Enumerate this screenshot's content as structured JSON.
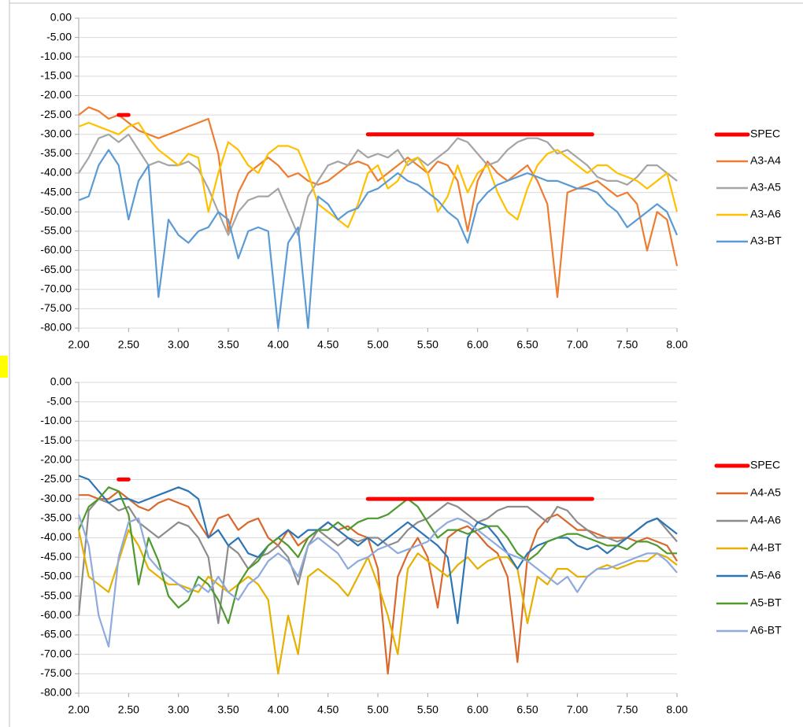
{
  "chart_data": [
    {
      "type": "line",
      "x": [
        2,
        2.1,
        2.2,
        2.3,
        2.4,
        2.5,
        2.6,
        2.7,
        2.8,
        2.9,
        3,
        3.1,
        3.2,
        3.3,
        3.4,
        3.5,
        3.6,
        3.7,
        3.8,
        3.9,
        4,
        4.1,
        4.2,
        4.3,
        4.4,
        4.5,
        4.6,
        4.7,
        4.8,
        4.9,
        5,
        5.1,
        5.2,
        5.3,
        5.4,
        5.5,
        5.6,
        5.7,
        5.8,
        5.9,
        6,
        6.1,
        6.2,
        6.3,
        6.4,
        6.5,
        6.6,
        6.7,
        6.8,
        6.9,
        7,
        7.1,
        7.2,
        7.3,
        7.4,
        7.5,
        7.6,
        7.7,
        7.8,
        7.9,
        8
      ],
      "xlim": [
        2,
        8
      ],
      "xticks": [
        {
          "value": 2,
          "label": "2.00"
        },
        {
          "value": 2.5,
          "label": "2.50"
        },
        {
          "value": 3,
          "label": "3.00"
        },
        {
          "value": 3.5,
          "label": "3.50"
        },
        {
          "value": 4,
          "label": "4.00"
        },
        {
          "value": 4.5,
          "label": "4.50"
        },
        {
          "value": 5,
          "label": "5.00"
        },
        {
          "value": 5.5,
          "label": "5.50"
        },
        {
          "value": 6,
          "label": "6.00"
        },
        {
          "value": 6.5,
          "label": "6.50"
        },
        {
          "value": 7,
          "label": "7.00"
        },
        {
          "value": 7.5,
          "label": "7.50"
        },
        {
          "value": 8,
          "label": "8.00"
        }
      ],
      "ylim": [
        -80,
        0
      ],
      "yticks": [
        {
          "value": 0,
          "label": "0.00"
        },
        {
          "value": -5,
          "label": "-5.00"
        },
        {
          "value": -10,
          "label": "-10.00"
        },
        {
          "value": -15,
          "label": "-15.00"
        },
        {
          "value": -20,
          "label": "-20.00"
        },
        {
          "value": -25,
          "label": "-25.00"
        },
        {
          "value": -30,
          "label": "-30.00"
        },
        {
          "value": -35,
          "label": "-35.00"
        },
        {
          "value": -40,
          "label": "-40.00"
        },
        {
          "value": -45,
          "label": "-45.00"
        },
        {
          "value": -50,
          "label": "-50.00"
        },
        {
          "value": -55,
          "label": "-55.00"
        },
        {
          "value": -60,
          "label": "-60.00"
        },
        {
          "value": -65,
          "label": "-65.00"
        },
        {
          "value": -70,
          "label": "-70.00"
        },
        {
          "value": -75,
          "label": "-75.00"
        },
        {
          "value": -80,
          "label": "-80.00"
        }
      ],
      "grid": true,
      "legend": "right",
      "series": [
        {
          "name": "SPEC",
          "color": "#ff0000",
          "x": [
            2.4,
            2.5,
            2.6,
            4.9,
            7.15
          ],
          "values": [
            -25,
            -25,
            null,
            -30,
            -30
          ]
        },
        {
          "name": "A3-A4",
          "color": "#ed7d31",
          "values": [
            -25,
            -23,
            -24,
            -26,
            -25,
            -27,
            -29,
            -30,
            -31,
            -30,
            -29,
            -28,
            -27,
            -26,
            -35,
            -55,
            -45,
            -40,
            -38,
            -36,
            -38,
            -41,
            -40,
            -42,
            -43,
            -42,
            -40,
            -38,
            -37,
            -38,
            -42,
            -40,
            -38,
            -36,
            -38,
            -40,
            -37,
            -38,
            -42,
            -55,
            -42,
            -37,
            -40,
            -42,
            -40,
            -38,
            -42,
            -48,
            -72,
            -45,
            -44,
            -43,
            -42,
            -44,
            -46,
            -45,
            -48,
            -60,
            -50,
            -52,
            -64
          ]
        },
        {
          "name": "A3-A5",
          "color": "#a5a5a5",
          "values": [
            -40,
            -36,
            -31,
            -30,
            -32,
            -30,
            -34,
            -38,
            -37,
            -38,
            -38,
            -37,
            -39,
            -44,
            -50,
            -56,
            -50,
            -47,
            -46,
            -46,
            -44,
            -50,
            -56,
            -46,
            -42,
            -38,
            -37,
            -38,
            -34,
            -36,
            -35,
            -36,
            -34,
            -38,
            -36,
            -38,
            -36,
            -34,
            -31,
            -32,
            -35,
            -38,
            -37,
            -34,
            -32,
            -31,
            -31,
            -32,
            -35,
            -34,
            -36,
            -38,
            -41,
            -42,
            -42,
            -43,
            -41,
            -38,
            -38,
            -40,
            -42
          ]
        },
        {
          "name": "A3-A6",
          "color": "#ffc000",
          "values": [
            -28,
            -27,
            -28,
            -29,
            -30,
            -28,
            -27,
            -31,
            -34,
            -36,
            -38,
            -35,
            -36,
            -50,
            -40,
            -32,
            -34,
            -38,
            -40,
            -35,
            -33,
            -33,
            -34,
            -40,
            -48,
            -50,
            -52,
            -54,
            -48,
            -40,
            -38,
            -44,
            -42,
            -37,
            -36,
            -40,
            -50,
            -46,
            -38,
            -45,
            -40,
            -38,
            -45,
            -50,
            -52,
            -44,
            -38,
            -35,
            -34,
            -36,
            -38,
            -40,
            -38,
            -38,
            -40,
            -41,
            -42,
            -44,
            -42,
            -40,
            -50
          ]
        },
        {
          "name": "A3-BT",
          "color": "#5b9bd5",
          "values": [
            -47,
            -46,
            -38,
            -34,
            -38,
            -52,
            -42,
            -38,
            -72,
            -52,
            -56,
            -58,
            -55,
            -54,
            -50,
            -52,
            -62,
            -55,
            -54,
            -55,
            -80,
            -58,
            -54,
            -80,
            -46,
            -48,
            -52,
            -50,
            -49,
            -45,
            -44,
            -42,
            -40,
            -42,
            -43,
            -45,
            -47,
            -50,
            -52,
            -58,
            -48,
            -45,
            -43,
            -42,
            -41,
            -40,
            -41,
            -42,
            -42,
            -43,
            -44,
            -44,
            -45,
            -48,
            -50,
            -54,
            -52,
            -50,
            -48,
            -50,
            -56
          ]
        }
      ]
    },
    {
      "type": "line",
      "x": [
        2,
        2.1,
        2.2,
        2.3,
        2.4,
        2.5,
        2.6,
        2.7,
        2.8,
        2.9,
        3,
        3.1,
        3.2,
        3.3,
        3.4,
        3.5,
        3.6,
        3.7,
        3.8,
        3.9,
        4,
        4.1,
        4.2,
        4.3,
        4.4,
        4.5,
        4.6,
        4.7,
        4.8,
        4.9,
        5,
        5.1,
        5.2,
        5.3,
        5.4,
        5.5,
        5.6,
        5.7,
        5.8,
        5.9,
        6,
        6.1,
        6.2,
        6.3,
        6.4,
        6.5,
        6.6,
        6.7,
        6.8,
        6.9,
        7,
        7.1,
        7.2,
        7.3,
        7.4,
        7.5,
        7.6,
        7.7,
        7.8,
        7.9,
        8
      ],
      "xlim": [
        2,
        8
      ],
      "xticks": [
        {
          "value": 2,
          "label": "2.00"
        },
        {
          "value": 2.5,
          "label": "2.50"
        },
        {
          "value": 3,
          "label": "3.00"
        },
        {
          "value": 3.5,
          "label": "3.50"
        },
        {
          "value": 4,
          "label": "4.00"
        },
        {
          "value": 4.5,
          "label": "4.50"
        },
        {
          "value": 5,
          "label": "5.00"
        },
        {
          "value": 5.5,
          "label": "5.50"
        },
        {
          "value": 6,
          "label": "6.00"
        },
        {
          "value": 6.5,
          "label": "6.50"
        },
        {
          "value": 7,
          "label": "7.00"
        },
        {
          "value": 7.5,
          "label": "7.50"
        },
        {
          "value": 8,
          "label": "8.00"
        }
      ],
      "ylim": [
        -80,
        0
      ],
      "yticks": [
        {
          "value": 0,
          "label": "0.00"
        },
        {
          "value": -5,
          "label": "-5.00"
        },
        {
          "value": -10,
          "label": "-10.00"
        },
        {
          "value": -15,
          "label": "-15.00"
        },
        {
          "value": -20,
          "label": "-20.00"
        },
        {
          "value": -25,
          "label": "-25.00"
        },
        {
          "value": -30,
          "label": "-30.00"
        },
        {
          "value": -35,
          "label": "-35.00"
        },
        {
          "value": -40,
          "label": "-40.00"
        },
        {
          "value": -45,
          "label": "-45.00"
        },
        {
          "value": -50,
          "label": "-50.00"
        },
        {
          "value": -55,
          "label": "-55.00"
        },
        {
          "value": -60,
          "label": "-60.00"
        },
        {
          "value": -65,
          "label": "-65.00"
        },
        {
          "value": -70,
          "label": "-70.00"
        },
        {
          "value": -75,
          "label": "-75.00"
        },
        {
          "value": -80,
          "label": "-80.00"
        }
      ],
      "grid": true,
      "legend": "right",
      "series": [
        {
          "name": "SPEC",
          "color": "#ff0000",
          "x": [
            2.4,
            2.5,
            2.6,
            4.9,
            7.15
          ],
          "values": [
            -25,
            -25,
            null,
            -30,
            -30
          ]
        },
        {
          "name": "A4-A5",
          "color": "#d8692d",
          "values": [
            -29,
            -29,
            -30,
            -30,
            -28,
            -30,
            -32,
            -33,
            -31,
            -30,
            -31,
            -32,
            -36,
            -40,
            -35,
            -34,
            -38,
            -36,
            -35,
            -40,
            -42,
            -38,
            -42,
            -40,
            -38,
            -36,
            -38,
            -37,
            -39,
            -40,
            -48,
            -75,
            -50,
            -44,
            -40,
            -45,
            -58,
            -40,
            -38,
            -37,
            -39,
            -42,
            -44,
            -50,
            -72,
            -45,
            -38,
            -35,
            -34,
            -36,
            -38,
            -38,
            -39,
            -40,
            -40,
            -40,
            -41,
            -40,
            -41,
            -42,
            -46
          ]
        },
        {
          "name": "A4-A6",
          "color": "#8c8c8c",
          "values": [
            -60,
            -33,
            -30,
            -31,
            -33,
            -32,
            -36,
            -38,
            -40,
            -38,
            -36,
            -37,
            -40,
            -45,
            -62,
            -42,
            -44,
            -48,
            -45,
            -44,
            -42,
            -45,
            -52,
            -42,
            -38,
            -40,
            -42,
            -40,
            -41,
            -40,
            -40,
            -42,
            -41,
            -38,
            -36,
            -35,
            -33,
            -31,
            -32,
            -34,
            -36,
            -35,
            -33,
            -32,
            -32,
            -32,
            -34,
            -36,
            -32,
            -33,
            -36,
            -38,
            -40,
            -40,
            -41,
            -40,
            -38,
            -36,
            -35,
            -38,
            -41
          ]
        },
        {
          "name": "A4-BT",
          "color": "#e6b000",
          "values": [
            -38,
            -50,
            -52,
            -54,
            -46,
            -38,
            -42,
            -48,
            -50,
            -52,
            -52,
            -53,
            -54,
            -50,
            -52,
            -54,
            -52,
            -50,
            -52,
            -56,
            -75,
            -60,
            -70,
            -50,
            -48,
            -50,
            -52,
            -55,
            -50,
            -45,
            -52,
            -60,
            -70,
            -48,
            -44,
            -46,
            -48,
            -50,
            -47,
            -45,
            -48,
            -46,
            -45,
            -45,
            -48,
            -62,
            -50,
            -52,
            -48,
            -48,
            -50,
            -50,
            -48,
            -47,
            -48,
            -47,
            -46,
            -46,
            -44,
            -45,
            -47
          ]
        },
        {
          "name": "A5-A6",
          "color": "#2e75b6",
          "values": [
            -24,
            -25,
            -28,
            -31,
            -30,
            -30,
            -31,
            -30,
            -29,
            -28,
            -27,
            -28,
            -30,
            -40,
            -38,
            -42,
            -40,
            -44,
            -45,
            -42,
            -40,
            -38,
            -40,
            -38,
            -38,
            -36,
            -38,
            -40,
            -42,
            -40,
            -42,
            -40,
            -38,
            -36,
            -38,
            -40,
            -42,
            -45,
            -62,
            -40,
            -36,
            -37,
            -40,
            -44,
            -48,
            -44,
            -42,
            -41,
            -40,
            -40,
            -42,
            -43,
            -42,
            -44,
            -42,
            -40,
            -38,
            -36,
            -35,
            -37,
            -39
          ]
        },
        {
          "name": "A5-BT",
          "color": "#4e9a2e",
          "values": [
            -38,
            -32,
            -30,
            -27,
            -28,
            -34,
            -52,
            -40,
            -46,
            -55,
            -58,
            -56,
            -50,
            -52,
            -56,
            -62,
            -52,
            -48,
            -46,
            -42,
            -40,
            -42,
            -45,
            -40,
            -38,
            -38,
            -36,
            -38,
            -36,
            -35,
            -35,
            -34,
            -32,
            -30,
            -32,
            -36,
            -40,
            -38,
            -38,
            -39,
            -38,
            -37,
            -37,
            -40,
            -44,
            -46,
            -44,
            -41,
            -40,
            -39,
            -39,
            -40,
            -41,
            -42,
            -42,
            -43,
            -41,
            -41,
            -42,
            -44,
            -44
          ]
        },
        {
          "name": "A6-BT",
          "color": "#8faadc",
          "values": [
            -34,
            -42,
            -60,
            -68,
            -45,
            -36,
            -35,
            -45,
            -48,
            -50,
            -52,
            -54,
            -52,
            -54,
            -50,
            -54,
            -56,
            -52,
            -50,
            -46,
            -44,
            -46,
            -50,
            -42,
            -40,
            -42,
            -44,
            -48,
            -46,
            -45,
            -43,
            -42,
            -44,
            -43,
            -42,
            -41,
            -38,
            -36,
            -35,
            -36,
            -38,
            -40,
            -42,
            -44,
            -45,
            -46,
            -48,
            -50,
            -52,
            -50,
            -54,
            -50,
            -48,
            -48,
            -47,
            -46,
            -45,
            -44,
            -44,
            -46,
            -49
          ]
        }
      ]
    }
  ]
}
